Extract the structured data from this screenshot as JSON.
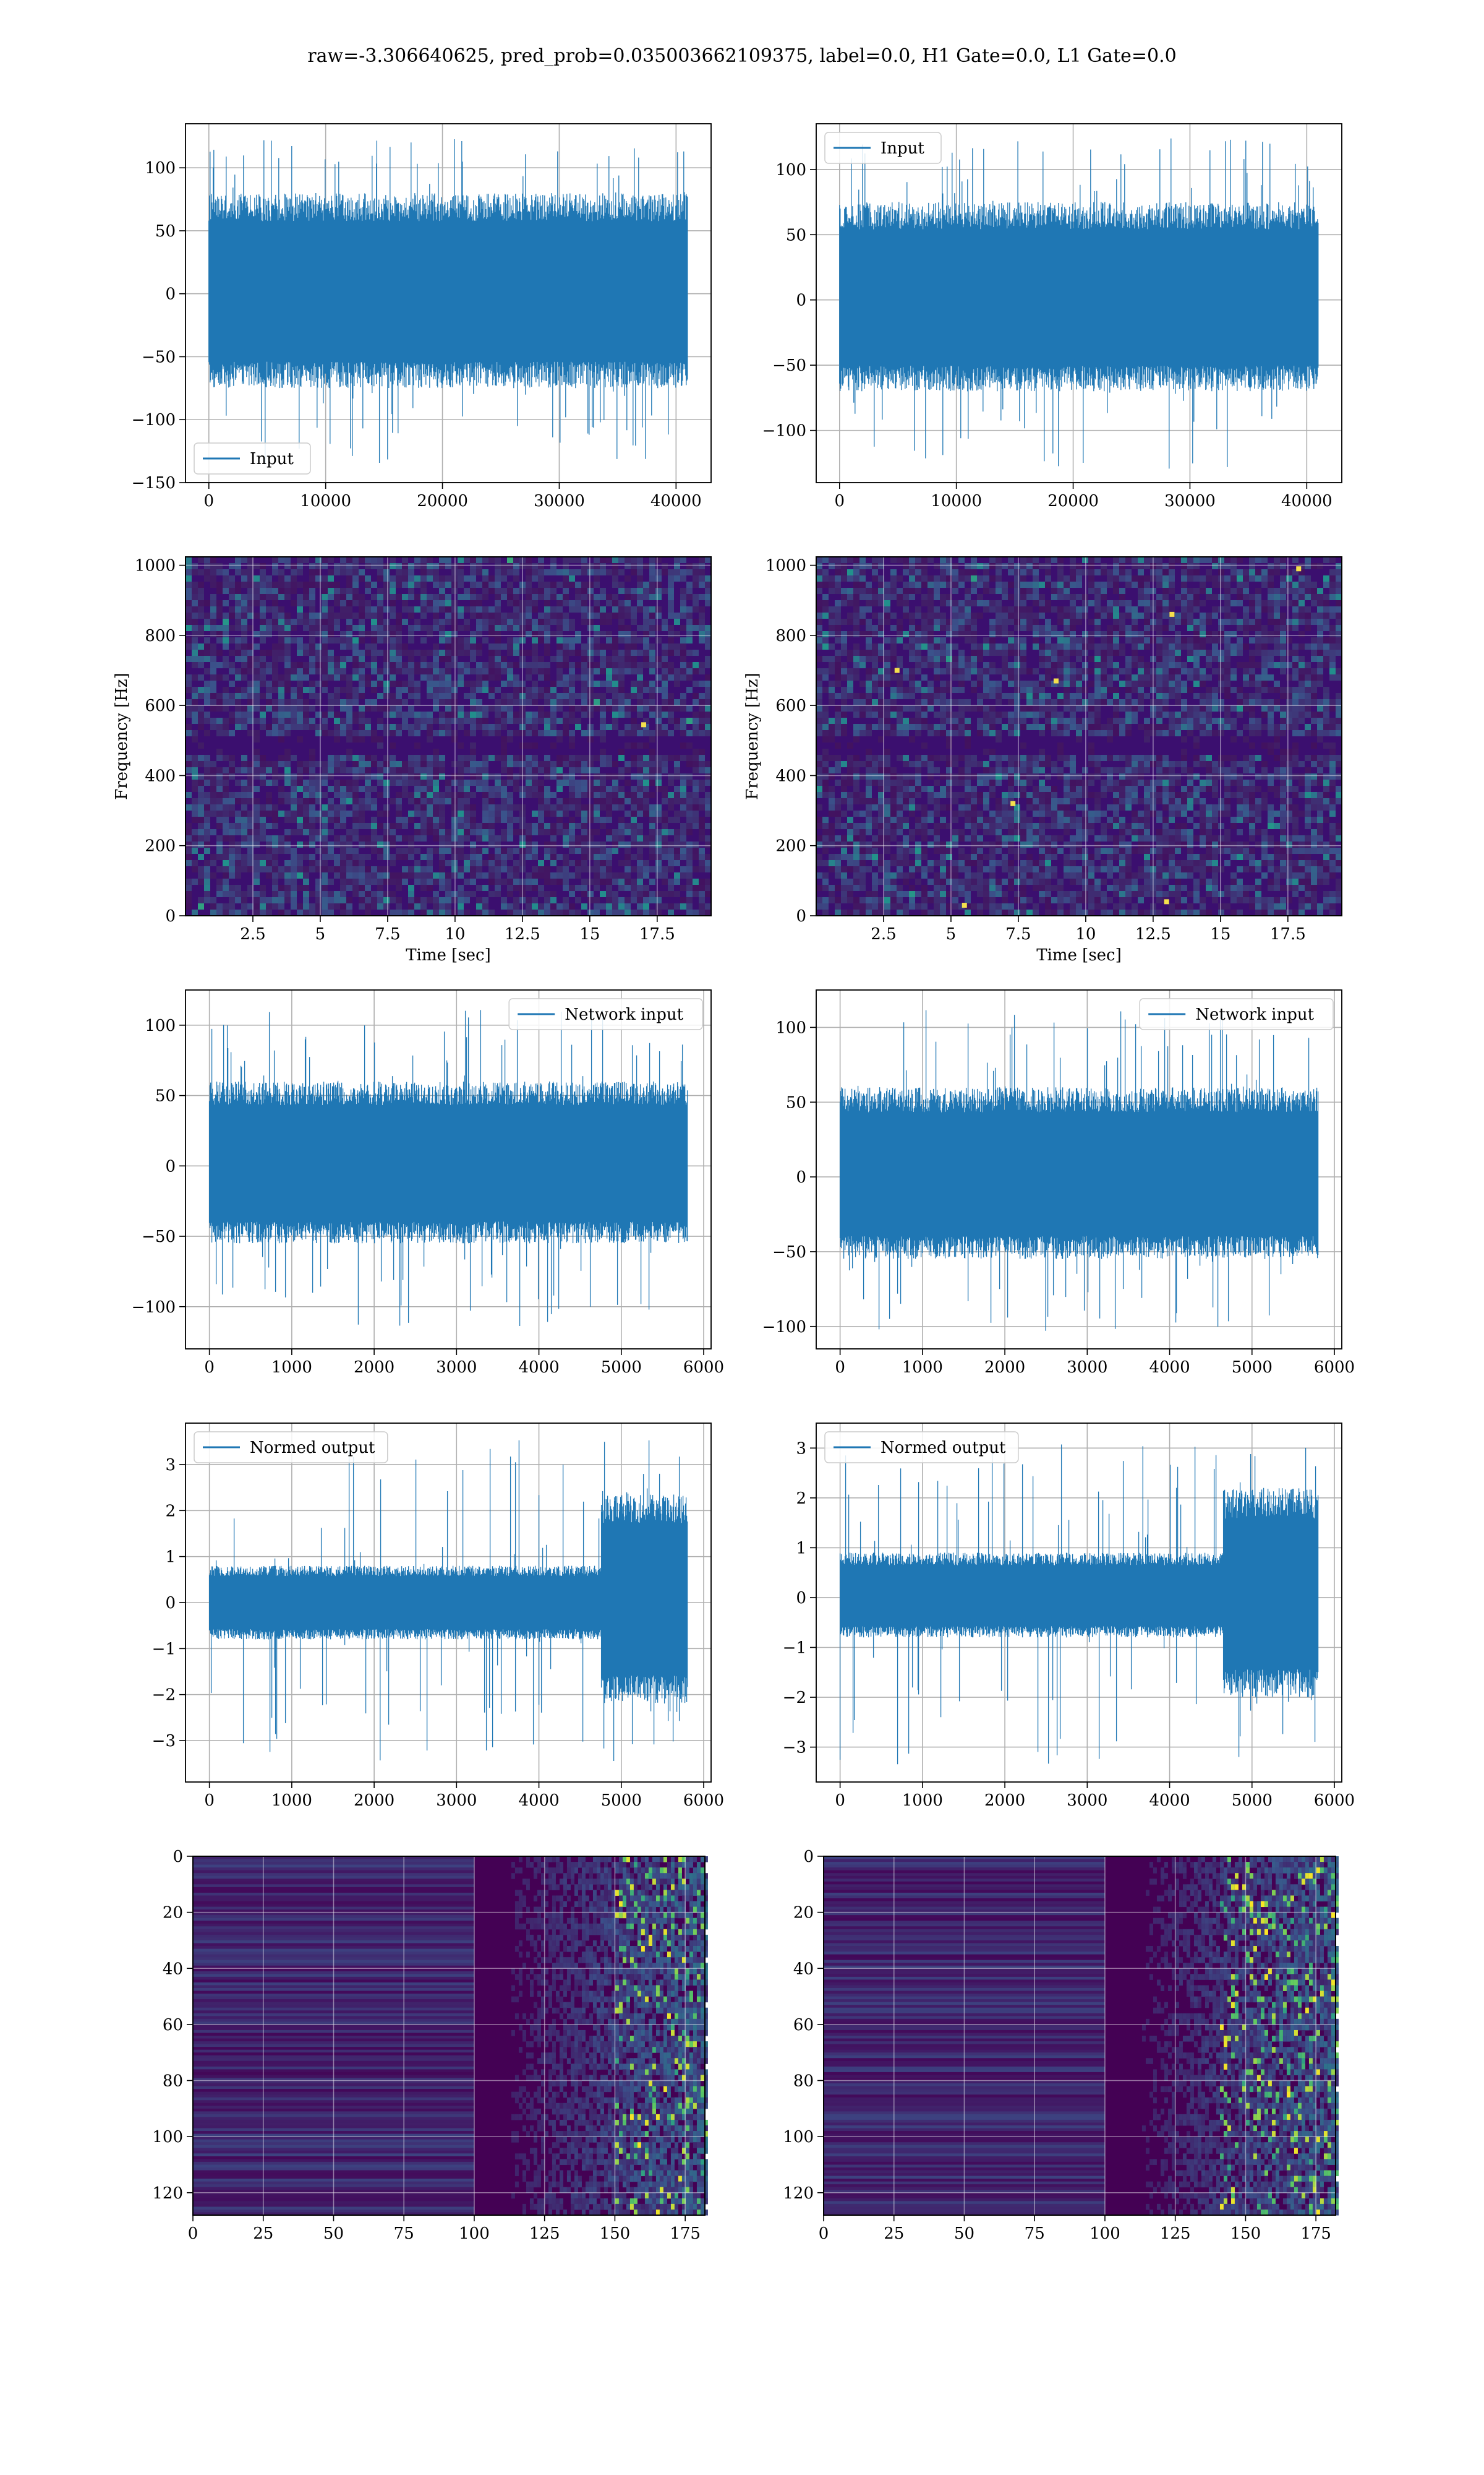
{
  "figure": {
    "suptitle": "raw=-3.306640625, pred_prob=0.035003662109375, label=0.0, H1 Gate=0.0, L1 Gate=0.0"
  },
  "colors": {
    "line": "#1f77b4",
    "grid": "#b0b0b0",
    "spectrogram_background": "#3b0f6f",
    "viridis_low": "#440154",
    "viridis_mid": "#21918c",
    "viridis_high": "#fde725"
  },
  "chart_data": [
    {
      "id": "input-h1",
      "type": "line",
      "legend": [
        "Input"
      ],
      "legend_loc": "lower-left",
      "series": [
        {
          "name": "Input",
          "n_points": 40960,
          "amplitude_range": [
            -137,
            124
          ],
          "typical_envelope": [
            -75,
            80
          ]
        }
      ],
      "xlim": [
        -2000,
        43000
      ],
      "ylim": [
        -150,
        135
      ],
      "xticks": [
        0,
        10000,
        20000,
        30000,
        40000
      ],
      "yticks": [
        -150,
        -100,
        -50,
        0,
        50,
        100
      ],
      "xlabel": "",
      "ylabel": "",
      "grid": true
    },
    {
      "id": "input-l1",
      "type": "line",
      "legend": [
        "Input"
      ],
      "legend_loc": "upper-left",
      "series": [
        {
          "name": "Input",
          "n_points": 40960,
          "amplitude_range": [
            -130,
            124
          ],
          "typical_envelope": [
            -70,
            75
          ]
        }
      ],
      "xlim": [
        -2000,
        43000
      ],
      "ylim": [
        -140,
        135
      ],
      "xticks": [
        0,
        10000,
        20000,
        30000,
        40000
      ],
      "yticks": [
        -100,
        -50,
        0,
        50,
        100
      ],
      "xlabel": "",
      "ylabel": "",
      "grid": true
    },
    {
      "id": "spectrogram-h1",
      "type": "heatmap",
      "xlim": [
        0,
        19.5
      ],
      "ylim": [
        0,
        1024
      ],
      "xticks": [
        2.5,
        5.0,
        7.5,
        10.0,
        12.5,
        15.0,
        17.5
      ],
      "yticks": [
        0,
        200,
        400,
        600,
        800,
        1000
      ],
      "xlabel": "Time [sec]",
      "ylabel": "Frequency [Hz]",
      "colormap": "viridis",
      "dark_band_hz": 500,
      "hot_spots": [
        [
          17.0,
          545
        ]
      ],
      "grid": true
    },
    {
      "id": "spectrogram-l1",
      "type": "heatmap",
      "xlim": [
        0,
        19.5
      ],
      "ylim": [
        0,
        1024
      ],
      "xticks": [
        2.5,
        5.0,
        7.5,
        10.0,
        12.5,
        15.0,
        17.5
      ],
      "yticks": [
        0,
        200,
        400,
        600,
        800,
        1000
      ],
      "xlabel": "Time [sec]",
      "ylabel": "Frequency [Hz]",
      "colormap": "viridis",
      "dark_band_hz": 500,
      "hot_spots": [
        [
          5.5,
          30
        ],
        [
          8.9,
          670
        ],
        [
          13.2,
          860
        ],
        [
          3.0,
          700
        ],
        [
          17.9,
          990
        ],
        [
          7.3,
          320
        ],
        [
          13.0,
          40
        ]
      ],
      "grid": true
    },
    {
      "id": "network-input-h1",
      "type": "line",
      "legend": [
        "Network input"
      ],
      "legend_loc": "upper-right",
      "series": [
        {
          "name": "Network input",
          "n_points": 5800,
          "amplitude_range": [
            -115,
            113
          ],
          "typical_envelope": [
            -55,
            60
          ]
        }
      ],
      "xlim": [
        -290,
        6090
      ],
      "ylim": [
        -130,
        125
      ],
      "xticks": [
        0,
        1000,
        2000,
        3000,
        4000,
        5000,
        6000
      ],
      "yticks": [
        -100,
        -50,
        0,
        50,
        100
      ],
      "xlabel": "",
      "ylabel": "",
      "grid": true
    },
    {
      "id": "network-input-l1",
      "type": "line",
      "legend": [
        "Network input"
      ],
      "legend_loc": "upper-right",
      "series": [
        {
          "name": "Network input",
          "n_points": 5800,
          "amplitude_range": [
            -105,
            112
          ],
          "typical_envelope": [
            -55,
            60
          ]
        }
      ],
      "xlim": [
        -290,
        6090
      ],
      "ylim": [
        -115,
        125
      ],
      "xticks": [
        0,
        1000,
        2000,
        3000,
        4000,
        5000,
        6000
      ],
      "yticks": [
        -100,
        -50,
        0,
        50,
        100
      ],
      "xlabel": "",
      "ylabel": "",
      "grid": true
    },
    {
      "id": "normed-output-h1",
      "type": "line",
      "legend": [
        "Normed output"
      ],
      "legend_loc": "upper-left",
      "series": [
        {
          "name": "Normed output",
          "n_points": 5800,
          "amplitude_range": [
            -3.5,
            3.6
          ],
          "typical_envelope": [
            -0.8,
            0.8
          ],
          "burst_start": 4750,
          "burst_envelope": [
            -2.2,
            2.4
          ]
        }
      ],
      "xlim": [
        -290,
        6090
      ],
      "ylim": [
        -3.9,
        3.9
      ],
      "xticks": [
        0,
        1000,
        2000,
        3000,
        4000,
        5000,
        6000
      ],
      "yticks": [
        -3,
        -2,
        -1,
        0,
        1,
        2,
        3
      ],
      "xlabel": "",
      "ylabel": "",
      "grid": true
    },
    {
      "id": "normed-output-l1",
      "type": "line",
      "legend": [
        "Normed output"
      ],
      "legend_loc": "upper-left",
      "series": [
        {
          "name": "Normed output",
          "n_points": 5800,
          "amplitude_range": [
            -3.4,
            3.1
          ],
          "typical_envelope": [
            -0.8,
            0.9
          ],
          "burst_start": 4650,
          "burst_envelope": [
            -2.0,
            2.2
          ]
        }
      ],
      "xlim": [
        -290,
        6090
      ],
      "ylim": [
        -3.7,
        3.5
      ],
      "xticks": [
        0,
        1000,
        2000,
        3000,
        4000,
        5000,
        6000
      ],
      "yticks": [
        -3,
        -2,
        -1,
        0,
        1,
        2,
        3
      ],
      "xlabel": "",
      "ylabel": "",
      "grid": true
    },
    {
      "id": "feature-map-h1",
      "type": "heatmap",
      "xlim": [
        0,
        182
      ],
      "ylim": [
        128,
        0
      ],
      "xticks": [
        0,
        25,
        50,
        75,
        100,
        125,
        150,
        175
      ],
      "yticks": [
        0,
        20,
        40,
        60,
        80,
        100,
        120
      ],
      "xlabel": "",
      "ylabel": "",
      "colormap": "viridis",
      "activity_onset_x": 100,
      "strong_activity_x": 150,
      "grid": true
    },
    {
      "id": "feature-map-l1",
      "type": "heatmap",
      "xlim": [
        0,
        182
      ],
      "ylim": [
        128,
        0
      ],
      "xticks": [
        0,
        25,
        50,
        75,
        100,
        125,
        150,
        175
      ],
      "yticks": [
        0,
        20,
        40,
        60,
        80,
        100,
        120
      ],
      "xlabel": "",
      "ylabel": "",
      "colormap": "viridis",
      "activity_onset_x": 100,
      "strong_activity_x": 140,
      "grid": true
    }
  ]
}
